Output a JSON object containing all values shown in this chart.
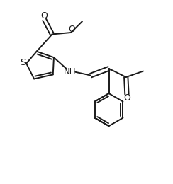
{
  "bg_color": "#ffffff",
  "line_color": "#1a1a1a",
  "line_width": 1.4,
  "figsize": [
    2.44,
    2.6
  ],
  "dpi": 100,
  "xlim": [
    0,
    10
  ],
  "ylim": [
    0,
    10.67
  ]
}
